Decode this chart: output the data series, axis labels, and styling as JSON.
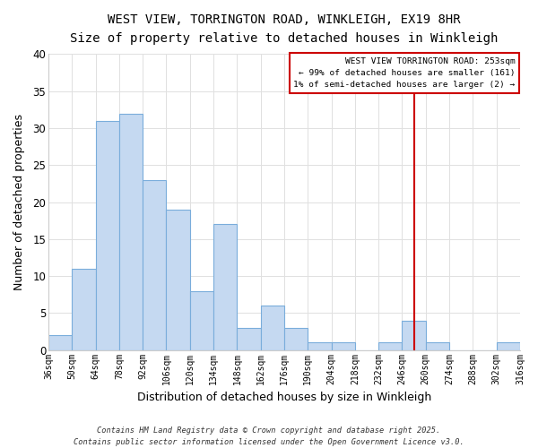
{
  "title": "WEST VIEW, TORRINGTON ROAD, WINKLEIGH, EX19 8HR",
  "subtitle": "Size of property relative to detached houses in Winkleigh",
  "xlabel": "Distribution of detached houses by size in Winkleigh",
  "ylabel": "Number of detached properties",
  "bar_color": "#c5d9f1",
  "bar_edge_color": "#7aaddb",
  "background_color": "#ffffff",
  "plot_bg_color": "#ffffff",
  "grid_color": "#e0e0e0",
  "bin_edges": [
    36,
    50,
    64,
    78,
    92,
    106,
    120,
    134,
    148,
    162,
    176,
    190,
    204,
    218,
    232,
    246,
    260,
    274,
    288,
    302,
    316
  ],
  "bin_counts": [
    2,
    11,
    31,
    32,
    23,
    19,
    8,
    17,
    3,
    6,
    3,
    1,
    1,
    0,
    1,
    4,
    1,
    0,
    0,
    1
  ],
  "property_size": 253,
  "vline_color": "#cc0000",
  "legend_text_line1": "WEST VIEW TORRINGTON ROAD: 253sqm",
  "legend_text_line2": "← 99% of detached houses are smaller (161)",
  "legend_text_line3": "1% of semi-detached houses are larger (2) →",
  "legend_box_edge_color": "#cc0000",
  "ylim": [
    0,
    40
  ],
  "yticks": [
    0,
    5,
    10,
    15,
    20,
    25,
    30,
    35,
    40
  ],
  "tick_labels": [
    "36sqm",
    "50sqm",
    "64sqm",
    "78sqm",
    "92sqm",
    "106sqm",
    "120sqm",
    "134sqm",
    "148sqm",
    "162sqm",
    "176sqm",
    "190sqm",
    "204sqm",
    "218sqm",
    "232sqm",
    "246sqm",
    "260sqm",
    "274sqm",
    "288sqm",
    "302sqm",
    "316sqm"
  ],
  "footer_line1": "Contains HM Land Registry data © Crown copyright and database right 2025.",
  "footer_line2": "Contains public sector information licensed under the Open Government Licence v3.0."
}
